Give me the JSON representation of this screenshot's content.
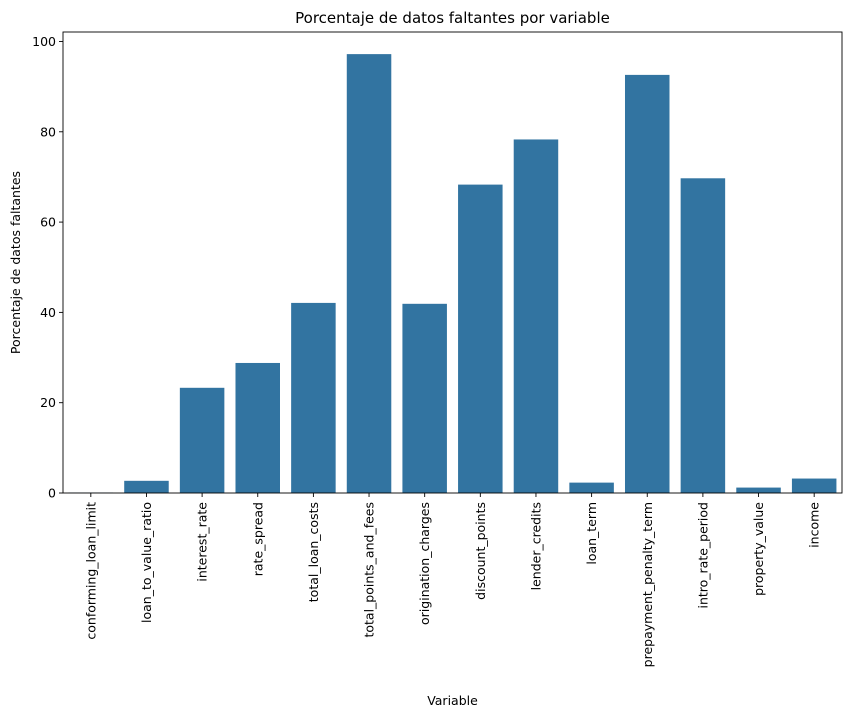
{
  "chart_data": {
    "type": "bar",
    "title": "Porcentaje de datos faltantes por variable",
    "xlabel": "Variable",
    "ylabel": "Porcentaje de datos faltantes",
    "categories": [
      "conforming_loan_limit",
      "loan_to_value_ratio",
      "interest_rate",
      "rate_spread",
      "total_loan_costs",
      "total_points_and_fees",
      "origination_charges",
      "discount_points",
      "lender_credits",
      "loan_term",
      "prepayment_penalty_term",
      "intro_rate_period",
      "property_value",
      "income"
    ],
    "values": [
      0.1,
      2.7,
      23.3,
      28.8,
      42.1,
      97.2,
      41.9,
      68.3,
      78.3,
      2.3,
      92.6,
      69.7,
      1.2,
      3.2
    ],
    "yticks": [
      0,
      20,
      40,
      60,
      80,
      100
    ],
    "ytick_labels": [
      "0",
      "20",
      "40",
      "60",
      "80",
      "100"
    ],
    "ylim": [
      0,
      102.1
    ],
    "grid": false,
    "colors": {
      "bar": "#3274a1",
      "axis": "#000000",
      "background": "#ffffff"
    }
  }
}
